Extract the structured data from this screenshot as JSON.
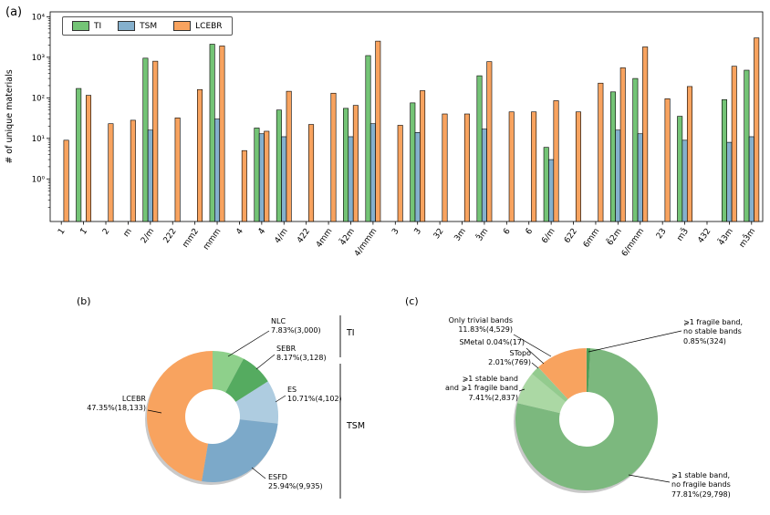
{
  "panels": {
    "a": "(a)",
    "b": "(b)",
    "c": "(c)"
  },
  "chart_data": [
    {
      "id": "point-group-bars",
      "type": "bar",
      "ylabel": "# of unique materials",
      "yscale": "log",
      "ylim": [
        0.1,
        12000
      ],
      "yticks": [
        "10⁰",
        "10¹",
        "10²",
        "10³",
        "10⁴"
      ],
      "legend_position": "upper left",
      "grid": false,
      "categories": [
        "1",
        "1̄",
        "2",
        "m",
        "2/m",
        "222",
        "mm2",
        "mmm",
        "4",
        "4̄",
        "4/m",
        "422",
        "4mm",
        "4̄2m",
        "4/mmm",
        "3",
        "3̄",
        "32",
        "3m",
        "3̄m",
        "6",
        "6̄",
        "6/m",
        "622",
        "6mm",
        "6̄2m",
        "6/mmm",
        "23",
        "m3̄",
        "432",
        "4̄3m",
        "m3̄m"
      ],
      "series": [
        {
          "name": "TI",
          "color": "#74c476",
          "values": [
            null,
            170,
            null,
            null,
            950,
            null,
            null,
            2100,
            null,
            18,
            50,
            null,
            null,
            55,
            1100,
            null,
            75,
            null,
            null,
            350,
            null,
            null,
            6,
            null,
            null,
            140,
            300,
            null,
            35,
            null,
            90,
            480
          ]
        },
        {
          "name": "TSM",
          "color": "#85b0cd",
          "values": [
            null,
            null,
            null,
            null,
            16,
            null,
            null,
            30,
            null,
            13,
            11,
            null,
            null,
            11,
            23,
            null,
            14,
            null,
            null,
            17,
            null,
            null,
            3,
            null,
            null,
            16,
            13,
            null,
            9,
            null,
            8,
            11
          ]
        },
        {
          "name": "LCEBR",
          "color": "#f8a35f",
          "values": [
            9,
            115,
            23,
            28,
            800,
            32,
            160,
            1900,
            5,
            15,
            145,
            22,
            130,
            65,
            2500,
            21,
            150,
            40,
            40,
            780,
            45,
            45,
            85,
            45,
            230,
            550,
            1800,
            95,
            190,
            null,
            600,
            3000
          ]
        }
      ]
    },
    {
      "id": "classification-donut",
      "type": "pie",
      "hole": 0.42,
      "slices": [
        {
          "label": "NLC",
          "pct": 7.83,
          "count": 3000,
          "color": "#8ed08b",
          "label_lines": [
            "NLC",
            "7.83%(3,000)"
          ]
        },
        {
          "label": "SEBR",
          "pct": 8.17,
          "count": 3128,
          "color": "#55ab60",
          "label_lines": [
            "SEBR",
            "8.17%(3,128)"
          ]
        },
        {
          "label": "ES",
          "pct": 10.71,
          "count": 4102,
          "color": "#aecce0",
          "label_lines": [
            "ES",
            "10.71%(4,102)"
          ]
        },
        {
          "label": "ESFD",
          "pct": 25.94,
          "count": 9935,
          "color": "#7ca9c9",
          "label_lines": [
            "ESFD",
            "25.94%(9,935)"
          ]
        },
        {
          "label": "LCEBR",
          "pct": 47.35,
          "count": 18133,
          "color": "#f8a35f",
          "label_lines": [
            "LCEBR",
            "47.35%(18,133)"
          ]
        }
      ],
      "groups": [
        {
          "label": "TI"
        },
        {
          "label": "TSM"
        }
      ]
    },
    {
      "id": "bands-donut",
      "type": "pie",
      "hole": 0.38,
      "slices": [
        {
          "label": "≥1 fragile band, no stable bands",
          "pct": 0.85,
          "count": 324,
          "color": "#4e9e57",
          "label_lines": [
            "⩾1 fragile band,",
            "no stable bands",
            "0.85%(324)"
          ]
        },
        {
          "label": "≥1 stable band, no fragile bands",
          "pct": 77.81,
          "count": 29798,
          "color": "#7cb87e",
          "label_lines": [
            "⩾1 stable band,",
            "no fragile bands",
            "77.81%(29,798)"
          ]
        },
        {
          "label": "≥1 stable band and ≥1 fragile band",
          "pct": 7.41,
          "count": 2837,
          "color": "#abd8a4",
          "label_lines": [
            "⩾1 stable band",
            "and ⩾1 fragile band",
            "7.41%(2,837)"
          ]
        },
        {
          "label": "STopo",
          "pct": 2.01,
          "count": 769,
          "color": "#93cb8e",
          "label_lines": [
            "STopo",
            "2.01%(769)"
          ]
        },
        {
          "label": "SMetal",
          "pct": 0.04,
          "count": 17,
          "color": "#cfcfcf",
          "label_lines": [
            "SMetal 0.04%(17)"
          ]
        },
        {
          "label": "Only trivial bands",
          "pct": 11.83,
          "count": 4529,
          "color": "#f8a35f",
          "label_lines": [
            "Only trivial bands",
            "11.83%(4,529)"
          ]
        }
      ]
    }
  ]
}
